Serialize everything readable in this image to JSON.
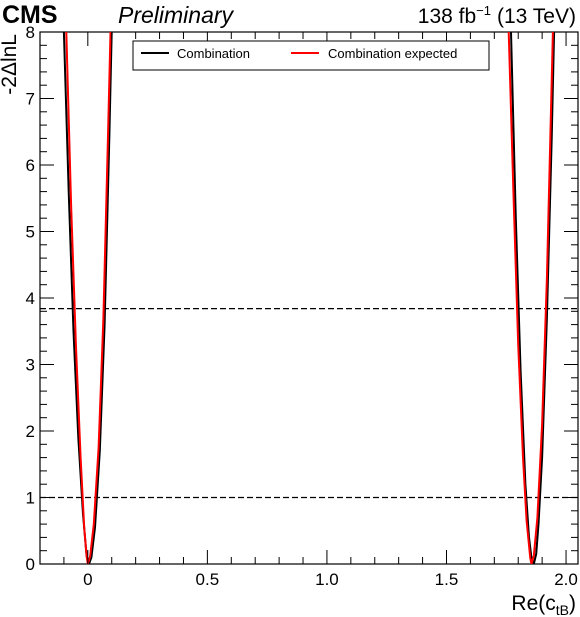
{
  "header": {
    "experiment": "CMS",
    "status": "Preliminary",
    "lumi_value": "138 fb",
    "lumi_exponent": "−1",
    "energy": "(13 TeV)"
  },
  "chart_data": {
    "type": "line",
    "xlabel": "Re(c",
    "xlabel_subscript": "tB",
    "xlabel_close": ")",
    "ylabel": "-2ΔlnL",
    "xlim": [
      -0.2,
      2.05
    ],
    "ylim": [
      0,
      8
    ],
    "x_ticks": [
      {
        "value": 0,
        "label": "0"
      },
      {
        "value": 0.5,
        "label": "0.5"
      },
      {
        "value": 1,
        "label": "1.0"
      },
      {
        "value": 1.5,
        "label": "1.5"
      },
      {
        "value": 2,
        "label": "2.0"
      }
    ],
    "y_ticks": [
      {
        "value": 0,
        "label": "0"
      },
      {
        "value": 1,
        "label": "1"
      },
      {
        "value": 2,
        "label": "2"
      },
      {
        "value": 3,
        "label": "3"
      },
      {
        "value": 4,
        "label": "4"
      },
      {
        "value": 5,
        "label": "5"
      },
      {
        "value": 6,
        "label": "6"
      },
      {
        "value": 7,
        "label": "7"
      },
      {
        "value": 8,
        "label": "8"
      }
    ],
    "reference_lines": [
      1.0,
      3.84
    ],
    "legend_position": "top-center",
    "series": [
      {
        "name": "Combination",
        "color": "#000000",
        "points": [
          [
            -0.1,
            8.0
          ],
          [
            -0.08,
            5.6
          ],
          [
            -0.06,
            3.5
          ],
          [
            -0.04,
            1.9
          ],
          [
            -0.02,
            0.75
          ],
          [
            -0.005,
            0.12
          ],
          [
            0.005,
            0.0
          ],
          [
            0.015,
            0.1
          ],
          [
            0.03,
            0.55
          ],
          [
            0.05,
            1.7
          ],
          [
            0.07,
            3.6
          ],
          [
            0.09,
            6.4
          ],
          [
            0.1,
            8.0
          ],
          [
            1.77,
            8.0
          ],
          [
            1.79,
            5.2
          ],
          [
            1.81,
            2.9
          ],
          [
            1.83,
            1.2
          ],
          [
            1.845,
            0.4
          ],
          [
            1.855,
            0.1
          ],
          [
            1.865,
            0.0
          ],
          [
            1.875,
            0.15
          ],
          [
            1.885,
            0.6
          ],
          [
            1.9,
            1.6
          ],
          [
            1.92,
            3.7
          ],
          [
            1.94,
            6.4
          ],
          [
            1.95,
            8.0
          ]
        ]
      },
      {
        "name": "Combination expected",
        "color": "#ff0000",
        "points": [
          [
            -0.09,
            8.0
          ],
          [
            -0.07,
            5.4
          ],
          [
            -0.05,
            3.3
          ],
          [
            -0.03,
            1.6
          ],
          [
            -0.015,
            0.55
          ],
          [
            -0.005,
            0.12
          ],
          [
            0.0,
            0.0
          ],
          [
            0.01,
            0.12
          ],
          [
            0.025,
            0.6
          ],
          [
            0.045,
            1.75
          ],
          [
            0.065,
            3.7
          ],
          [
            0.085,
            6.5
          ],
          [
            0.095,
            8.0
          ],
          [
            1.76,
            8.0
          ],
          [
            1.78,
            5.6
          ],
          [
            1.8,
            3.3
          ],
          [
            1.82,
            1.6
          ],
          [
            1.835,
            0.65
          ],
          [
            1.85,
            0.1
          ],
          [
            1.855,
            0.0
          ],
          [
            1.865,
            0.12
          ],
          [
            1.88,
            0.7
          ],
          [
            1.9,
            2.1
          ],
          [
            1.92,
            4.3
          ],
          [
            1.945,
            8.0
          ]
        ]
      }
    ]
  }
}
